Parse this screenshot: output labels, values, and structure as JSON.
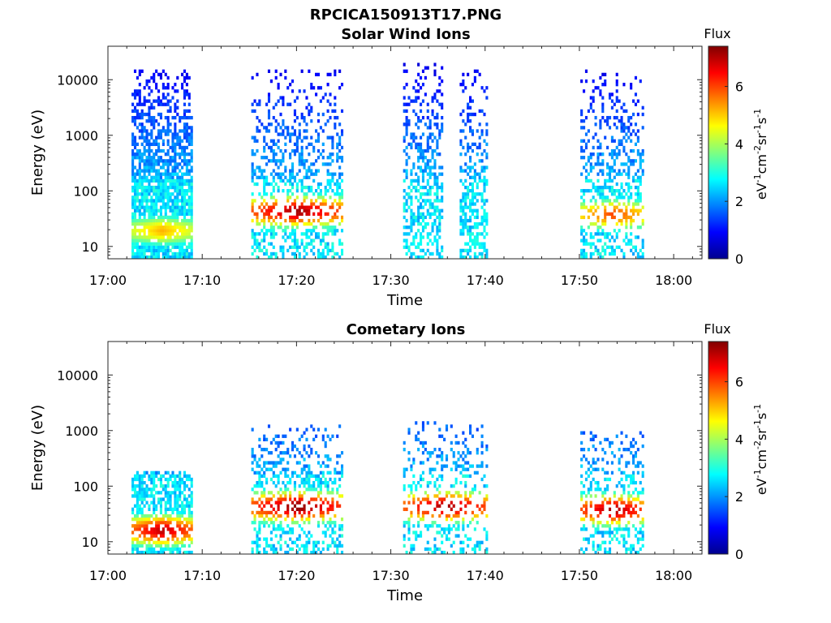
{
  "figure": {
    "title": "RPCICA150913T17.PNG"
  },
  "colorbar": {
    "title": "Flux",
    "label": "eV-1cm-2sr-1s-1",
    "range": [
      0,
      7.4
    ],
    "ticks": [
      "0",
      "2",
      "4",
      "6"
    ],
    "colormap": "jet"
  },
  "chart_data": [
    {
      "type": "heatmap",
      "title": "Solar Wind Ions",
      "xlabel": "Time",
      "ylabel": "Energy (eV)",
      "x_ticks": [
        "17:00",
        "17:10",
        "17:20",
        "17:30",
        "17:40",
        "17:50",
        "18:00"
      ],
      "y_ticks": [
        "10",
        "100",
        "1000",
        "10000"
      ],
      "y_scale": "log",
      "ylim": [
        6,
        40000
      ],
      "xlim_minutes_after_17_00": [
        0,
        63
      ],
      "blocks": [
        {
          "t_start": 2.5,
          "t_end": 8.8,
          "emax": 15000,
          "peak_energy": 18,
          "peak_flux": 5.2,
          "density": 0.9
        },
        {
          "t_start": 15.2,
          "t_end": 24.8,
          "emax": 15000,
          "peak_energy": 40,
          "peak_flux": 7.2,
          "density": 0.45
        },
        {
          "t_start": 31.3,
          "t_end": 35.5,
          "emax": 20000,
          "peak_energy": 12,
          "peak_flux": 3.0,
          "density": 0.5
        },
        {
          "t_start": 37.3,
          "t_end": 40.2,
          "emax": 15000,
          "peak_energy": 12,
          "peak_flux": 3.0,
          "density": 0.55
        },
        {
          "t_start": 50.1,
          "t_end": 56.8,
          "emax": 15000,
          "peak_energy": 35,
          "peak_flux": 6.0,
          "density": 0.45
        }
      ]
    },
    {
      "type": "heatmap",
      "title": "Cometary Ions",
      "xlabel": "Time",
      "ylabel": "Energy (eV)",
      "x_ticks": [
        "17:00",
        "17:10",
        "17:20",
        "17:30",
        "17:40",
        "17:50",
        "18:00"
      ],
      "y_ticks": [
        "10",
        "100",
        "1000",
        "10000"
      ],
      "y_scale": "log",
      "ylim": [
        6,
        40000
      ],
      "xlim_minutes_after_17_00": [
        0,
        63
      ],
      "blocks": [
        {
          "t_start": 2.5,
          "t_end": 8.8,
          "emax": 180,
          "peak_energy": 15,
          "peak_flux": 7.0,
          "density": 0.7
        },
        {
          "t_start": 15.2,
          "t_end": 24.8,
          "emax": 1200,
          "peak_energy": 40,
          "peak_flux": 7.4,
          "density": 0.45
        },
        {
          "t_start": 31.3,
          "t_end": 40.2,
          "emax": 1500,
          "peak_energy": 40,
          "peak_flux": 7.2,
          "density": 0.3
        },
        {
          "t_start": 50.1,
          "t_end": 56.8,
          "emax": 900,
          "peak_energy": 35,
          "peak_flux": 7.2,
          "density": 0.4
        }
      ]
    }
  ]
}
